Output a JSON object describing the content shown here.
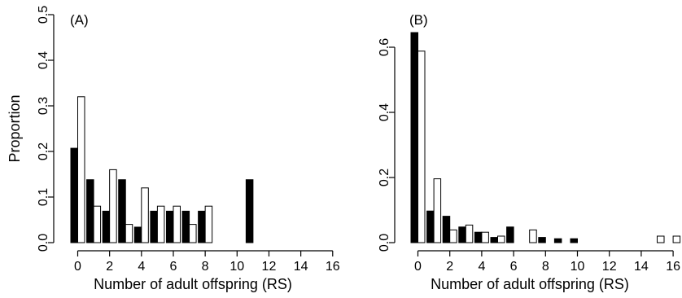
{
  "chart_data": [
    {
      "type": "bar",
      "panel_label": "(A)",
      "title": "",
      "xlabel": "Number of adult offspring (RS)",
      "ylabel": "Proportion",
      "x": [
        0,
        1,
        2,
        3,
        4,
        5,
        6,
        7,
        8,
        9,
        10,
        11,
        12,
        13,
        14,
        15,
        16
      ],
      "x_tick_labels": [
        "0",
        "2",
        "4",
        "6",
        "8",
        "10",
        "12",
        "14",
        "16"
      ],
      "x_tick_values": [
        0,
        2,
        4,
        6,
        8,
        10,
        12,
        14,
        16
      ],
      "y_tick_labels": [
        "0.0",
        "0.1",
        "0.2",
        "0.3",
        "0.4",
        "0.5"
      ],
      "y_tick_values": [
        0,
        0.1,
        0.2,
        0.3,
        0.4,
        0.5
      ],
      "ylim": [
        0,
        0.5
      ],
      "grid": false,
      "legend": "none",
      "series": [
        {
          "fill": "#000000",
          "values": [
            0.207,
            0.138,
            0.069,
            0.138,
            0.034,
            0.069,
            0.069,
            0.069,
            0.069,
            0,
            0,
            0.138,
            0,
            0,
            0,
            0,
            0
          ]
        },
        {
          "fill": "#ffffff",
          "values": [
            0.32,
            0.08,
            0.16,
            0.04,
            0.12,
            0.08,
            0.08,
            0.04,
            0.08,
            0,
            0,
            0,
            0,
            0,
            0,
            0,
            0
          ]
        }
      ]
    },
    {
      "type": "bar",
      "panel_label": "(B)",
      "title": "",
      "xlabel": "Number of adult offspring (RS)",
      "ylabel": "",
      "x": [
        0,
        1,
        2,
        3,
        4,
        5,
        6,
        7,
        8,
        9,
        10,
        11,
        12,
        13,
        14,
        15,
        16
      ],
      "x_tick_labels": [
        "0",
        "2",
        "4",
        "6",
        "8",
        "10",
        "12",
        "14",
        "16"
      ],
      "x_tick_values": [
        0,
        2,
        4,
        6,
        8,
        10,
        12,
        14,
        16
      ],
      "y_tick_labels": [
        "0.0",
        "0.2",
        "0.4",
        "0.6"
      ],
      "y_tick_values": [
        0,
        0.2,
        0.4,
        0.6
      ],
      "ylim": [
        0,
        0.7
      ],
      "grid": false,
      "legend": "none",
      "series": [
        {
          "fill": "#000000",
          "values": [
            0.645,
            0.097,
            0.081,
            0.048,
            0.032,
            0.016,
            0.048,
            0,
            0.016,
            0.012,
            0.012,
            0,
            0,
            0,
            0,
            0,
            0
          ]
        },
        {
          "fill": "#ffffff",
          "values": [
            0.588,
            0.196,
            0.039,
            0.054,
            0.032,
            0.02,
            0,
            0.039,
            0,
            0,
            0,
            0,
            0,
            0,
            0,
            0.02,
            0.02
          ]
        }
      ]
    }
  ]
}
